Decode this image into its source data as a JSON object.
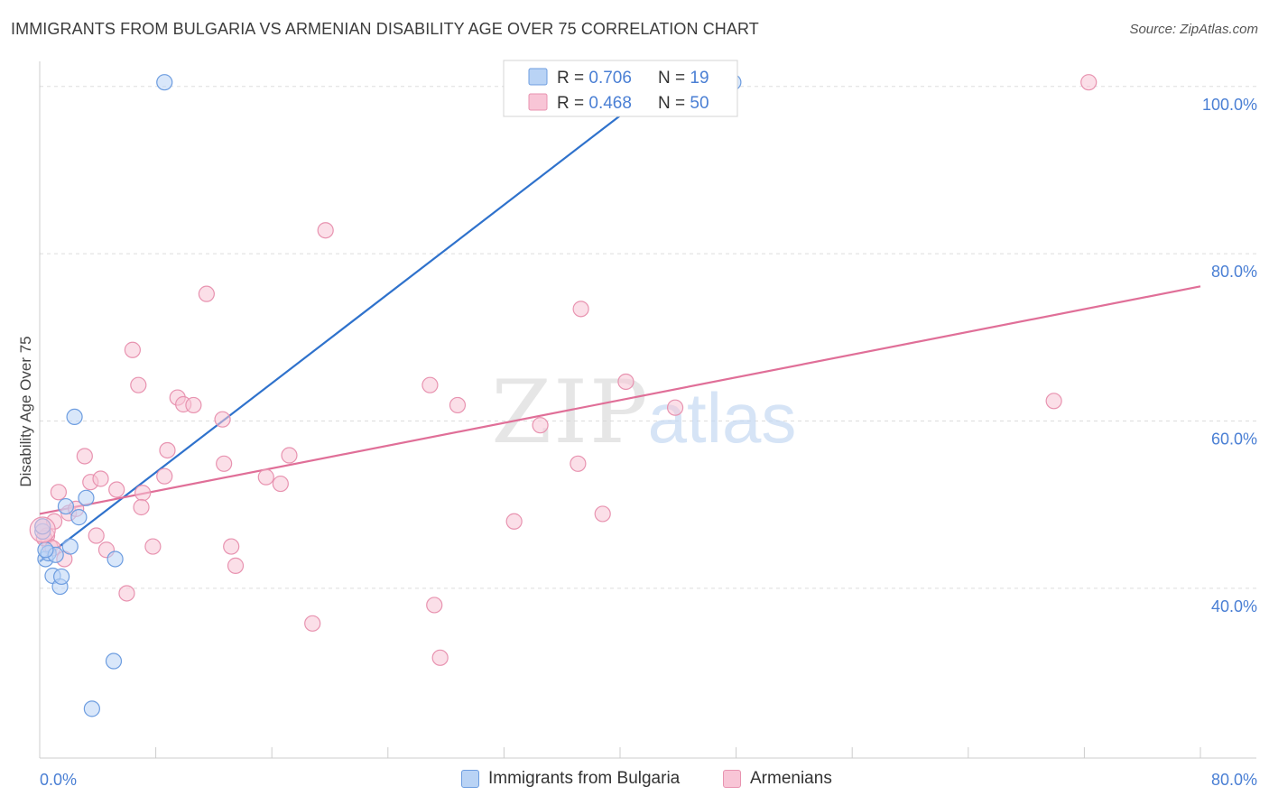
{
  "title": "IMMIGRANTS FROM BULGARIA VS ARMENIAN DISABILITY AGE OVER 75 CORRELATION CHART",
  "source": "Source: ZipAtlas.com",
  "colors": {
    "blue_fill": "#b9d3f5",
    "blue_stroke": "#6d9de0",
    "blue_line": "#2f72cc",
    "pink_fill": "#f8c5d6",
    "pink_stroke": "#e893b0",
    "pink_line": "#e06f98",
    "tick_label": "#4a7fd4",
    "grid": "#dddddd"
  },
  "chart_data": {
    "type": "scatter",
    "title": "IMMIGRANTS FROM BULGARIA VS ARMENIAN DISABILITY AGE OVER 75 CORRELATION CHART",
    "xlabel": "",
    "ylabel": "Disability Age Over 75",
    "xlim": [
      0,
      80
    ],
    "ylim": [
      21,
      103
    ],
    "x_tick_labels": [
      "0.0%",
      "80.0%"
    ],
    "y_ticks": [
      40,
      60,
      80,
      100
    ],
    "y_tick_labels": [
      "40.0%",
      "60.0%",
      "80.0%",
      "100.0%"
    ],
    "grid": true,
    "legend_placement": "bottom",
    "stats_box": {
      "rows": [
        {
          "r_label": "R = ",
          "r_value": "0.706",
          "n_label": "N = ",
          "n_value": "19"
        },
        {
          "r_label": "R = ",
          "r_value": "0.468",
          "n_label": "N = ",
          "n_value": "50"
        }
      ]
    },
    "watermark": {
      "zip": "ZIP",
      "atlas": "atlas"
    },
    "series": [
      {
        "name": "Immigrants from Bulgaria",
        "color": "blue",
        "points": [
          [
            0.2,
            46.8
          ],
          [
            0.4,
            43.5
          ],
          [
            0.6,
            44.2
          ],
          [
            0.9,
            41.5
          ],
          [
            1.1,
            44.0
          ],
          [
            1.4,
            40.2
          ],
          [
            1.5,
            41.4
          ],
          [
            1.8,
            49.8
          ],
          [
            2.1,
            45.0
          ],
          [
            2.4,
            60.5
          ],
          [
            2.7,
            48.5
          ],
          [
            3.2,
            50.8
          ],
          [
            5.2,
            43.5
          ],
          [
            5.1,
            31.3
          ],
          [
            3.6,
            25.6
          ],
          [
            8.6,
            100.5
          ],
          [
            47.8,
            100.5
          ],
          [
            0.4,
            44.6
          ],
          [
            0.2,
            47.4
          ]
        ],
        "trend": [
          [
            0.0,
            43.2
          ],
          [
            43.0,
            100.5
          ]
        ]
      },
      {
        "name": "Armenians",
        "color": "pink",
        "points": [
          [
            0.2,
            47.4
          ],
          [
            0.5,
            46.3
          ],
          [
            0.7,
            45.0
          ],
          [
            1.0,
            48.0
          ],
          [
            1.3,
            51.5
          ],
          [
            1.7,
            43.5
          ],
          [
            2.0,
            49.0
          ],
          [
            2.5,
            49.5
          ],
          [
            3.1,
            55.8
          ],
          [
            3.9,
            46.3
          ],
          [
            3.5,
            52.7
          ],
          [
            4.6,
            44.6
          ],
          [
            4.2,
            53.1
          ],
          [
            5.3,
            51.8
          ],
          [
            6.0,
            39.4
          ],
          [
            6.4,
            68.5
          ],
          [
            6.8,
            64.3
          ],
          [
            7.1,
            51.4
          ],
          [
            7.0,
            49.7
          ],
          [
            7.8,
            45.0
          ],
          [
            8.6,
            53.4
          ],
          [
            8.8,
            56.5
          ],
          [
            9.5,
            62.8
          ],
          [
            9.9,
            62.0
          ],
          [
            10.6,
            61.9
          ],
          [
            11.5,
            75.2
          ],
          [
            12.6,
            60.2
          ],
          [
            12.7,
            54.9
          ],
          [
            13.2,
            45.0
          ],
          [
            13.5,
            42.7
          ],
          [
            15.6,
            53.3
          ],
          [
            16.6,
            52.5
          ],
          [
            17.2,
            55.9
          ],
          [
            18.8,
            35.8
          ],
          [
            19.7,
            82.8
          ],
          [
            26.9,
            64.3
          ],
          [
            27.2,
            38.0
          ],
          [
            27.6,
            31.7
          ],
          [
            28.8,
            61.9
          ],
          [
            32.7,
            48.0
          ],
          [
            34.5,
            59.5
          ],
          [
            37.1,
            54.9
          ],
          [
            37.3,
            73.4
          ],
          [
            38.8,
            48.9
          ],
          [
            40.4,
            64.7
          ],
          [
            43.8,
            61.6
          ],
          [
            69.9,
            62.4
          ],
          [
            72.3,
            100.5
          ],
          [
            0.3,
            46.0
          ],
          [
            0.9,
            44.8
          ]
        ],
        "trend": [
          [
            0.0,
            48.9
          ],
          [
            80.0,
            76.1
          ]
        ]
      }
    ]
  }
}
